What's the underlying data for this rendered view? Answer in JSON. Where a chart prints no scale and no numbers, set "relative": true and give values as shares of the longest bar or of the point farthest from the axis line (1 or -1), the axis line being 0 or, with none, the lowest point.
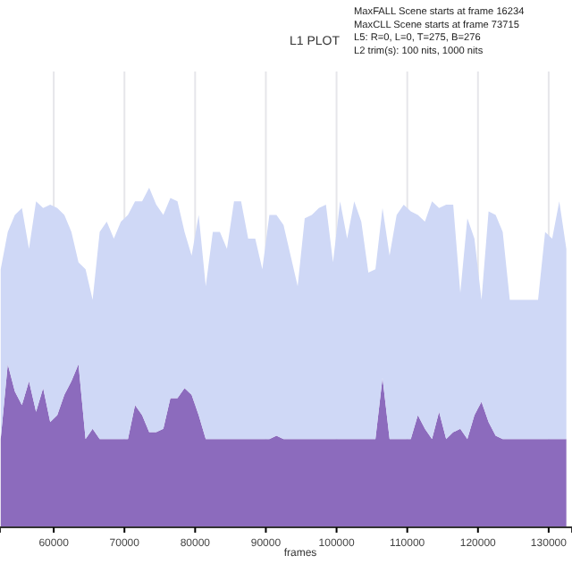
{
  "chart_data": {
    "type": "area",
    "title": "L1 PLOT",
    "xlabel": "frames",
    "annotations": [
      "MaxFALL Scene starts at frame 16234",
      "MaxCLL Scene starts at frame 73715",
      "L5: R=0, L=0, T=275, B=276",
      "L2 trim(s): 100 nits, 1000 nits"
    ],
    "relative": true,
    "stacked": true,
    "grid": "x",
    "xlim": [
      52400,
      133300
    ],
    "xticks": [
      60000,
      70000,
      80000,
      90000,
      100000,
      110000,
      120000,
      130000
    ],
    "x": [
      52500,
      53500,
      54500,
      55500,
      56500,
      57500,
      58500,
      59500,
      60500,
      61500,
      62500,
      63500,
      64500,
      65500,
      66500,
      67500,
      68500,
      69500,
      70500,
      71500,
      72500,
      73500,
      74500,
      75500,
      76500,
      77500,
      78500,
      79500,
      80500,
      81500,
      82500,
      83500,
      84500,
      85500,
      86500,
      87500,
      88500,
      89500,
      90500,
      91500,
      92500,
      93500,
      94500,
      95500,
      96500,
      97500,
      98500,
      99500,
      100500,
      101500,
      102500,
      103500,
      104500,
      105500,
      106500,
      107500,
      108500,
      109500,
      110500,
      111500,
      112500,
      113500,
      114500,
      115500,
      116500,
      117500,
      118500,
      119500,
      120500,
      121500,
      122500,
      123500,
      124500,
      125500,
      126500,
      127500,
      128500,
      129500,
      130500,
      131500,
      132500
    ],
    "series": [
      {
        "color": "#8c6bbd",
        "values": [
          0.26,
          0.48,
          0.4,
          0.36,
          0.43,
          0.34,
          0.41,
          0.31,
          0.33,
          0.39,
          0.43,
          0.48,
          0.26,
          0.29,
          0.26,
          0.26,
          0.26,
          0.26,
          0.26,
          0.36,
          0.33,
          0.28,
          0.28,
          0.29,
          0.38,
          0.38,
          0.41,
          0.39,
          0.33,
          0.26,
          0.26,
          0.26,
          0.26,
          0.26,
          0.26,
          0.26,
          0.26,
          0.26,
          0.26,
          0.27,
          0.26,
          0.26,
          0.26,
          0.26,
          0.26,
          0.26,
          0.26,
          0.26,
          0.26,
          0.26,
          0.26,
          0.26,
          0.26,
          0.26,
          0.44,
          0.26,
          0.26,
          0.26,
          0.26,
          0.33,
          0.29,
          0.26,
          0.34,
          0.26,
          0.28,
          0.29,
          0.26,
          0.33,
          0.37,
          0.31,
          0.27,
          0.26,
          0.26,
          0.26,
          0.26,
          0.26,
          0.26,
          0.26,
          0.26,
          0.26,
          0.26
        ]
      },
      {
        "color": "#cfd8f6",
        "values": [
          0.5,
          0.39,
          0.52,
          0.58,
          0.39,
          0.62,
          0.53,
          0.64,
          0.61,
          0.53,
          0.44,
          0.3,
          0.5,
          0.38,
          0.61,
          0.64,
          0.59,
          0.64,
          0.66,
          0.6,
          0.63,
          0.72,
          0.67,
          0.63,
          0.59,
          0.58,
          0.46,
          0.41,
          0.59,
          0.45,
          0.61,
          0.61,
          0.56,
          0.7,
          0.7,
          0.59,
          0.59,
          0.5,
          0.66,
          0.65,
          0.63,
          0.54,
          0.45,
          0.65,
          0.66,
          0.68,
          0.69,
          0.52,
          0.7,
          0.59,
          0.7,
          0.64,
          0.49,
          0.5,
          0.5,
          0.54,
          0.66,
          0.69,
          0.67,
          0.59,
          0.61,
          0.7,
          0.6,
          0.69,
          0.67,
          0.4,
          0.65,
          0.52,
          0.3,
          0.62,
          0.65,
          0.61,
          0.41,
          0.41,
          0.41,
          0.41,
          0.41,
          0.61,
          0.59,
          0.7,
          0.56
        ]
      }
    ]
  }
}
